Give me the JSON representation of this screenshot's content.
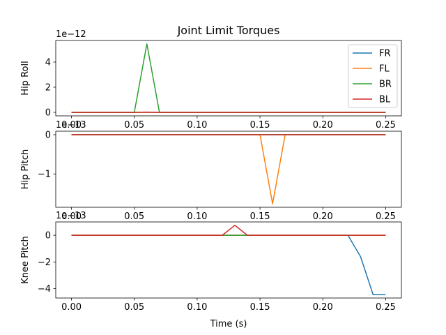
{
  "chart_data": {
    "type": "line",
    "title": "Joint Limit Torques",
    "xlabel": "Time (s)",
    "x_ticks": [
      0.0,
      0.05,
      0.1,
      0.15,
      0.2,
      0.25
    ],
    "x_tick_labels": [
      "0.00",
      "0.05",
      "0.10",
      "0.15",
      "0.20",
      "0.25"
    ],
    "xlim": [
      -0.0125,
      0.2625
    ],
    "x": [
      0.0,
      0.01,
      0.02,
      0.03,
      0.04,
      0.05,
      0.06,
      0.07,
      0.08,
      0.09,
      0.1,
      0.11,
      0.12,
      0.13,
      0.14,
      0.15,
      0.16,
      0.17,
      0.18,
      0.19,
      0.2,
      0.21,
      0.22,
      0.23,
      0.24,
      0.25
    ],
    "legend": {
      "placement": "upper right",
      "entries": [
        "FR",
        "FL",
        "BR",
        "BL"
      ]
    },
    "colors": {
      "FR": "#1f77b4",
      "FL": "#ff7f0e",
      "BR": "#2ca02c",
      "BL": "#d62728"
    },
    "subplots": [
      {
        "ylabel": "Hip Roll",
        "offset_text": "1e−12",
        "ylim": [
          -0.28,
          5.72
        ],
        "y_ticks": [
          0,
          2,
          4
        ],
        "y_tick_labels": [
          "0",
          "2",
          "4"
        ],
        "show_legend": true,
        "series": [
          {
            "name": "FR",
            "values": [
              0,
              0,
              0,
              0,
              0,
              0,
              0,
              0,
              0,
              0,
              0,
              0,
              0,
              0,
              0,
              0,
              0,
              0,
              0,
              0,
              0,
              0,
              0,
              0,
              0,
              0
            ]
          },
          {
            "name": "FL",
            "values": [
              0,
              0,
              0,
              0,
              0,
              0,
              0,
              0,
              0,
              0,
              0,
              0,
              0,
              0,
              0,
              0,
              0,
              0,
              0,
              0,
              0,
              0,
              0,
              0,
              0,
              0
            ]
          },
          {
            "name": "BR",
            "values": [
              0,
              0,
              0,
              0,
              0,
              0,
              5.45,
              0,
              0,
              0,
              0,
              0,
              0,
              0,
              0,
              0,
              0,
              0,
              0,
              0,
              0,
              0,
              0,
              0,
              0,
              0
            ]
          },
          {
            "name": "BL",
            "values": [
              0,
              0,
              0,
              0,
              0,
              0,
              0.02,
              0,
              0,
              0,
              0,
              0,
              0,
              0,
              0,
              0,
              0,
              0,
              0,
              0,
              0,
              0,
              0,
              0,
              0,
              0
            ]
          }
        ]
      },
      {
        "ylabel": "Hip Pitch",
        "offset_text": "1e−13",
        "ylim": [
          -1.85,
          0.09
        ],
        "y_ticks": [
          -1,
          0
        ],
        "y_tick_labels": [
          "−1",
          "0"
        ],
        "show_legend": false,
        "series": [
          {
            "name": "FR",
            "values": [
              0,
              0,
              0,
              0,
              0,
              0,
              0,
              0,
              0,
              0,
              0,
              0,
              0,
              0,
              0,
              0,
              0,
              0,
              0,
              0,
              0,
              0,
              0,
              0,
              0,
              0
            ]
          },
          {
            "name": "FL",
            "values": [
              0,
              0,
              0,
              0,
              0,
              0,
              0,
              0,
              0,
              0,
              0,
              0,
              0,
              0,
              0,
              0,
              -1.76,
              0,
              0,
              0,
              0,
              0,
              0,
              0,
              0,
              0
            ]
          },
          {
            "name": "BR",
            "values": [
              0,
              0,
              0,
              0,
              0,
              0,
              0,
              0,
              0,
              0,
              0,
              0,
              0,
              0,
              0,
              0,
              0,
              0,
              0,
              0,
              0,
              0,
              0,
              0,
              0,
              0
            ]
          },
          {
            "name": "BL",
            "values": [
              0,
              0,
              0,
              0,
              0,
              0,
              0,
              0,
              0,
              0,
              0,
              0,
              0,
              0,
              0,
              0,
              0,
              0,
              0,
              0,
              0,
              0,
              0,
              0,
              0,
              0
            ]
          }
        ]
      },
      {
        "ylabel": "Knee Pitch",
        "offset_text": "1e−13",
        "ylim": [
          -4.7,
          1.0
        ],
        "y_ticks": [
          -4,
          -2,
          0
        ],
        "y_tick_labels": [
          "−4",
          "−2",
          "0"
        ],
        "show_legend": false,
        "series": [
          {
            "name": "FR",
            "values": [
              0,
              0,
              0,
              0,
              0,
              0,
              0,
              0,
              0,
              0,
              0,
              0,
              0,
              0,
              0,
              0,
              0,
              0,
              0,
              0,
              0,
              0,
              0,
              -1.6,
              -4.45,
              -4.45
            ]
          },
          {
            "name": "FL",
            "values": [
              0,
              0,
              0,
              0,
              0,
              0,
              0,
              0,
              0,
              0,
              0,
              0,
              0,
              0,
              0,
              0,
              0,
              0,
              0,
              0,
              0,
              0,
              0,
              0,
              0,
              0
            ]
          },
          {
            "name": "BR",
            "values": [
              0,
              0,
              0,
              0,
              0,
              0,
              0,
              0,
              0,
              0,
              0,
              0,
              0,
              0,
              0,
              0,
              0,
              0,
              0,
              0,
              0,
              0,
              0,
              0,
              0,
              0
            ]
          },
          {
            "name": "BL",
            "values": [
              0,
              0,
              0,
              0,
              0,
              0,
              0,
              0,
              0,
              0,
              0,
              0,
              0,
              0.75,
              0,
              0,
              0,
              0,
              0,
              0,
              0,
              0,
              0,
              0,
              0,
              0
            ]
          }
        ]
      }
    ]
  }
}
